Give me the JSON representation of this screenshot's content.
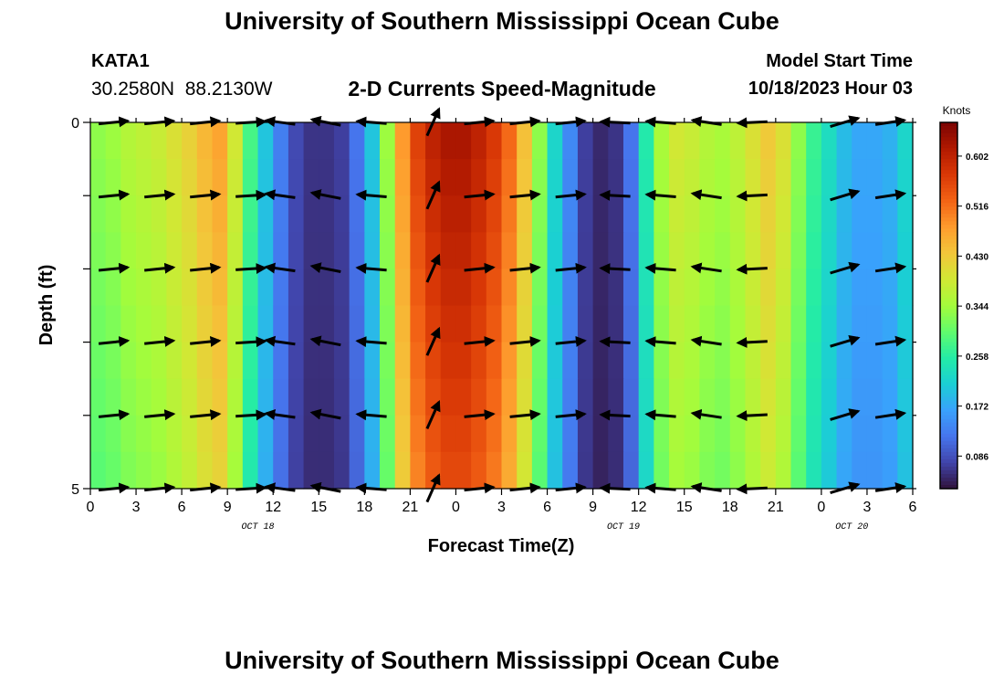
{
  "header": {
    "title": "University of Southern Mississippi Ocean Cube",
    "station": "KATA1",
    "coords": "30.2580N  88.2130W",
    "subtitle": "2-D Currents Speed-Magnitude",
    "model_label": "Model Start Time",
    "model_time": "10/18/2023 Hour 03"
  },
  "footer": {
    "title_repeat": "University of Southern Mississippi Ocean Cube"
  },
  "colors": {
    "scale": [
      "#30123b",
      "#4145ab",
      "#4675ed",
      "#39a2fc",
      "#1bcfd4",
      "#24eca6",
      "#61fc6c",
      "#a4fc3b",
      "#d1e834",
      "#f3c63a",
      "#fe9b2d",
      "#f36315",
      "#d93806",
      "#b11901",
      "#7a0402"
    ]
  },
  "chart_data": {
    "type": "heatmap",
    "title": "2-D Currents Speed-Magnitude",
    "xlabel": "Forecast Time(Z)",
    "ylabel": "Depth (ft)",
    "x_ticks": [
      "0",
      "3",
      "6",
      "9",
      "12",
      "15",
      "18",
      "21",
      "0",
      "3",
      "6",
      "9",
      "12",
      "15",
      "18",
      "21",
      "0",
      "3",
      "6"
    ],
    "date_labels": [
      {
        "text": "OCT 18",
        "hour": 11
      },
      {
        "text": "OCT 19",
        "hour": 35
      },
      {
        "text": "OCT 20",
        "hour": 50
      }
    ],
    "y_ticks": [
      "0",
      "5"
    ],
    "xlim": [
      0,
      54
    ],
    "ylim": [
      0,
      5
    ],
    "colorbar": {
      "label": "Knots",
      "ticks": [
        "0.602",
        "0.516",
        "0.430",
        "0.344",
        "0.258",
        "0.172",
        "0.086"
      ],
      "range": [
        0.03,
        0.66
      ]
    },
    "speed_by_hour": [
      0.33,
      0.34,
      0.36,
      0.37,
      0.38,
      0.4,
      0.42,
      0.45,
      0.47,
      0.39,
      0.28,
      0.2,
      0.13,
      0.08,
      0.06,
      0.06,
      0.07,
      0.12,
      0.2,
      0.34,
      0.48,
      0.56,
      0.6,
      0.62,
      0.62,
      0.6,
      0.57,
      0.52,
      0.44,
      0.33,
      0.22,
      0.14,
      0.07,
      0.05,
      0.06,
      0.12,
      0.25,
      0.35,
      0.39,
      0.38,
      0.36,
      0.35,
      0.37,
      0.4,
      0.43,
      0.4,
      0.33,
      0.27,
      0.23,
      0.19,
      0.17,
      0.17,
      0.18,
      0.22
    ],
    "arrow_depth_rows": [
      0,
      1,
      2,
      3,
      4,
      5
    ],
    "arrows": [
      {
        "hour": 0,
        "dir": [
          1,
          0.1
        ]
      },
      {
        "hour": 3,
        "dir": [
          1,
          0.1
        ]
      },
      {
        "hour": 6,
        "dir": [
          1,
          0.1
        ]
      },
      {
        "hour": 9,
        "dir": [
          1,
          0.06
        ]
      },
      {
        "hour": 11,
        "dir": [
          -1,
          0.14
        ]
      },
      {
        "hour": 14,
        "dir": [
          -1,
          0.2
        ]
      },
      {
        "hour": 17,
        "dir": [
          -1,
          0.08
        ]
      },
      {
        "hour": 21,
        "dir": [
          0.4,
          0.9
        ]
      },
      {
        "hour": 24,
        "dir": [
          1,
          0.1
        ]
      },
      {
        "hour": 27,
        "dir": [
          1,
          0.1
        ]
      },
      {
        "hour": 30,
        "dir": [
          1,
          0.1
        ]
      },
      {
        "hour": 33,
        "dir": [
          -1,
          0.05
        ]
      },
      {
        "hour": 36,
        "dir": [
          -1,
          0.08
        ]
      },
      {
        "hour": 39,
        "dir": [
          -1,
          0.15
        ]
      },
      {
        "hour": 42,
        "dir": [
          -1,
          -0.05
        ]
      },
      {
        "hour": 48,
        "dir": [
          1,
          0.3
        ]
      },
      {
        "hour": 51,
        "dir": [
          1,
          0.15
        ]
      }
    ]
  }
}
